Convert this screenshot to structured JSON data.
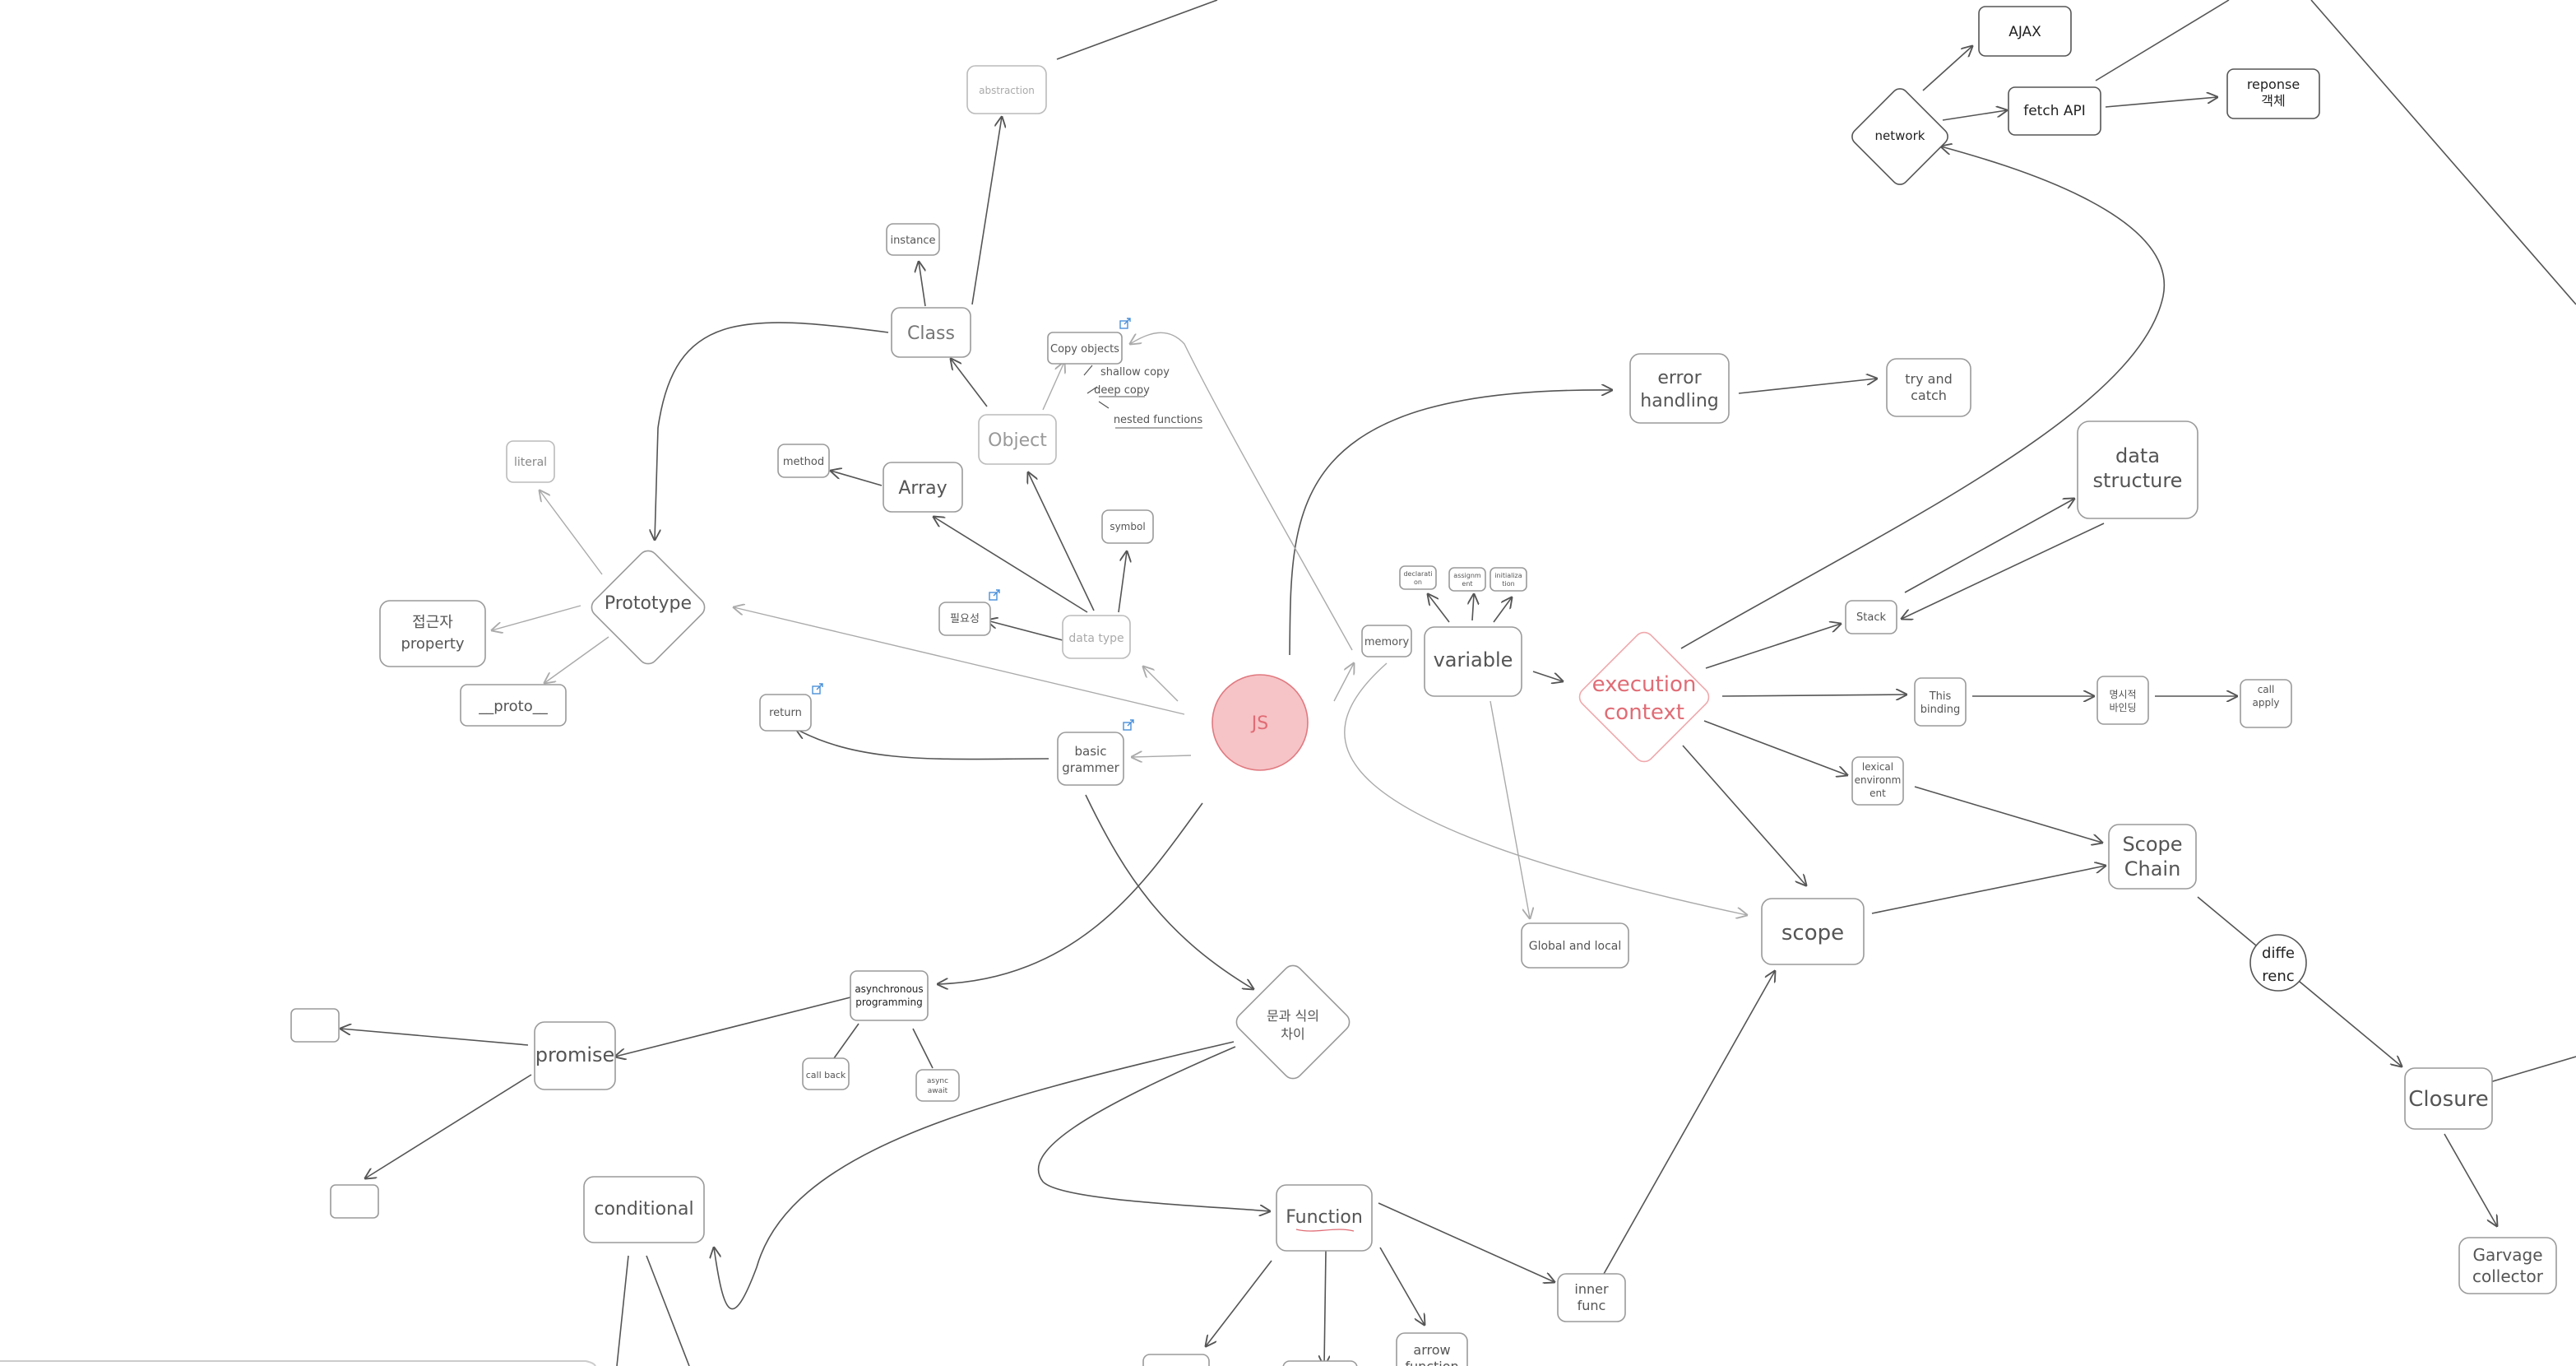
{
  "canvas": {
    "background": "#ffffff"
  },
  "colors": {
    "edge": "#555555",
    "faint": "#aaaaaa",
    "accent": "#e06c75",
    "accent_fill": "#f6c3c6",
    "box": "#9a9a9a",
    "text": "#555555",
    "link": "#4a90d9"
  },
  "nodes": {
    "js": "JS",
    "abstraction": "abstraction",
    "instance": "instance",
    "class": "Class",
    "copy_objects": "Copy objects",
    "shallow_copy": "shallow copy",
    "deep_copy": "deep copy",
    "nested_functions": "nested functions",
    "object": "Object",
    "array": "Array",
    "method": "method",
    "literal": "literal",
    "prototype": "Prototype",
    "access_property": [
      "접근자",
      "property"
    ],
    "proto": "__proto__",
    "symbol": "symbol",
    "necessity": "필요성",
    "data_type": "data type",
    "return": "return",
    "basic_grammer": [
      "basic",
      "grammer"
    ],
    "memory": "memory",
    "variable": "variable",
    "declaration": [
      "declarati",
      "on"
    ],
    "assignment": [
      "assignm",
      "ent"
    ],
    "initialization": [
      "initializa",
      "tion"
    ],
    "execution_context": [
      "execution",
      "context"
    ],
    "error_handling": [
      "error",
      "handling"
    ],
    "try_catch": [
      "try and",
      "catch"
    ],
    "network": "network",
    "ajax": "AJAX",
    "fetch_api": "fetch API",
    "response_object": [
      "reponse",
      "객체"
    ],
    "data_structure": [
      "data",
      "structure"
    ],
    "stack": "Stack",
    "this_binding": [
      "This",
      "binding"
    ],
    "explicit_binding": [
      "명시적",
      "바인딩"
    ],
    "call_apply": [
      "call",
      "apply"
    ],
    "lexical_environment": [
      "lexical",
      "environm",
      "ent"
    ],
    "scope_chain": [
      "Scope",
      "Chain"
    ],
    "difference": [
      "diffe",
      "renc"
    ],
    "closure": "Closure",
    "garbage_collector": [
      "Garvage",
      "collector"
    ],
    "global_local": "Global and local",
    "scope": "scope",
    "async_programming": [
      "asynchronous",
      "programming"
    ],
    "callback": "call back",
    "async_await": [
      "async",
      "await"
    ],
    "promise": "promise",
    "statement_expression": [
      "문과 식의",
      "차이"
    ],
    "conditional": "conditional",
    "function": "Function",
    "inner_func": [
      "inner",
      "func"
    ],
    "arrow_function": [
      "arrow",
      "function"
    ]
  }
}
